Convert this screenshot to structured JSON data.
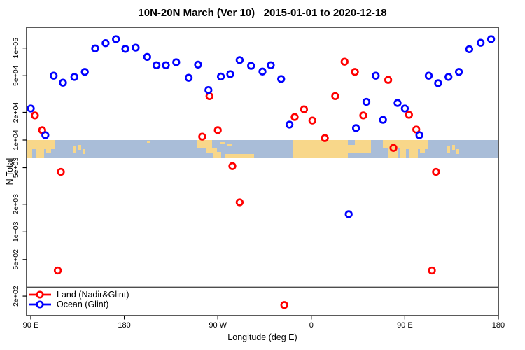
{
  "figure": {
    "title": "10N-20N March (Ver 10)   2015-01-01 to 2020-12-18",
    "xlabel": "Longitude (deg E)",
    "ylabel": "N Total"
  },
  "legend": {
    "items": [
      {
        "label": "Land (Nadir&Glint)",
        "color": "#FF0000"
      },
      {
        "label": "Ocean (Glint)",
        "color": "#0000FF"
      }
    ]
  },
  "chart_data": {
    "type": "scatter",
    "title": "10N-20N March (Ver 10)   2015-01-01 to 2020-12-18",
    "xlabel": "Longitude (deg E)",
    "ylabel": "N Total",
    "x_axis": {
      "note": "longitude unrolled eastward: 90E -> 180 -> 90W -> 0 -> 90E -> 180",
      "tick_positions_deg": [
        90,
        180,
        270,
        360,
        450,
        540
      ],
      "tick_labels": [
        "90 E",
        "180",
        "90 W",
        "0",
        "90 E",
        "180"
      ],
      "range_deg": [
        86,
        540
      ]
    },
    "y_axis": {
      "scale": "log10",
      "tick_values": [
        200,
        500,
        1000,
        2000,
        5000,
        10000,
        20000,
        50000,
        100000
      ],
      "tick_labels": [
        "2e+02",
        "5e+02",
        "1e+03",
        "2e+03",
        "5e+03",
        "1e+04",
        "2e+04",
        "5e+04",
        "1e+05"
      ],
      "range": [
        150,
        180000
      ]
    },
    "hline": {
      "value": 250,
      "color": "#4d4d4d"
    },
    "point_style": {
      "radius": 4.3,
      "stroke_width": 2.7,
      "fill": "none"
    },
    "series": [
      {
        "name": "Land (Nadir&Glint)",
        "color": "#FF0000",
        "points": [
          [
            94,
            18500
          ],
          [
            101,
            12800
          ],
          [
            116,
            380
          ],
          [
            119,
            4500
          ],
          [
            255,
            10900
          ],
          [
            262,
            30000
          ],
          [
            270,
            12800
          ],
          [
            284,
            5200
          ],
          [
            291,
            2100
          ],
          [
            334,
            160
          ],
          [
            344,
            17800
          ],
          [
            353,
            21600
          ],
          [
            361,
            16300
          ],
          [
            373,
            10500
          ],
          [
            383,
            30000
          ],
          [
            392,
            71000
          ],
          [
            402,
            55000
          ],
          [
            410,
            18500
          ],
          [
            434,
            45000
          ],
          [
            439,
            8200
          ],
          [
            454,
            18800
          ],
          [
            461,
            13000
          ],
          [
            476,
            380
          ],
          [
            480,
            4500
          ]
        ]
      },
      {
        "name": "Ocean (Glint)",
        "color": "#0000FF",
        "points": [
          [
            90,
            22000
          ],
          [
            104,
            11300
          ],
          [
            112,
            50000
          ],
          [
            121,
            42000
          ],
          [
            132,
            48500
          ],
          [
            142,
            55000
          ],
          [
            152,
            99000
          ],
          [
            162,
            113000
          ],
          [
            172,
            125000
          ],
          [
            181,
            98000
          ],
          [
            191,
            101000
          ],
          [
            202,
            80000
          ],
          [
            211,
            65000
          ],
          [
            220,
            65000
          ],
          [
            230,
            70000
          ],
          [
            242,
            47500
          ],
          [
            251,
            66000
          ],
          [
            261,
            35000
          ],
          [
            273,
            49000
          ],
          [
            282,
            52000
          ],
          [
            291,
            74000
          ],
          [
            302,
            64000
          ],
          [
            313,
            55500
          ],
          [
            321,
            65000
          ],
          [
            331,
            46000
          ],
          [
            339,
            14700
          ],
          [
            396,
            1560
          ],
          [
            403,
            13500
          ],
          [
            413,
            26000
          ],
          [
            422,
            50000
          ],
          [
            429,
            16600
          ],
          [
            443,
            25300
          ],
          [
            450,
            22000
          ],
          [
            464,
            11300
          ],
          [
            473,
            50000
          ],
          [
            482,
            41500
          ],
          [
            492,
            48500
          ],
          [
            502,
            55000
          ],
          [
            512,
            97000
          ],
          [
            523,
            114000
          ],
          [
            533,
            125000
          ]
        ]
      }
    ],
    "map_strip": {
      "description": "10N-20N latitude coastline band",
      "ocean_color": "#a9bdd8",
      "land_color": "#f8d78a",
      "band_top_value": 10000,
      "band_bottom_value": 6450,
      "land_rects": [
        [
          0,
          0,
          40,
          13
        ],
        [
          0,
          13,
          8,
          12
        ],
        [
          13,
          13,
          12,
          12
        ],
        [
          28,
          13,
          7,
          5
        ],
        [
          66,
          9,
          5,
          9
        ],
        [
          74,
          7,
          4,
          7
        ],
        [
          80,
          13,
          4,
          7
        ],
        [
          172,
          1,
          4,
          3
        ],
        [
          243,
          0,
          22,
          11
        ],
        [
          256,
          11,
          16,
          7
        ],
        [
          266,
          17,
          12,
          8
        ],
        [
          276,
          3,
          8,
          3
        ],
        [
          287,
          5,
          6,
          3
        ],
        [
          283,
          20,
          42,
          5
        ],
        [
          381,
          0,
          78,
          25
        ],
        [
          459,
          7,
          14,
          11
        ],
        [
          469,
          0,
          23,
          18
        ],
        [
          509,
          0,
          29,
          11
        ],
        [
          516,
          11,
          14,
          14
        ],
        [
          534,
          0,
          40,
          13
        ],
        [
          534,
          13,
          8,
          12
        ],
        [
          547,
          13,
          12,
          12
        ],
        [
          562,
          13,
          7,
          5
        ],
        [
          600,
          9,
          5,
          9
        ],
        [
          608,
          7,
          4,
          7
        ],
        [
          614,
          13,
          4,
          7
        ]
      ]
    }
  }
}
